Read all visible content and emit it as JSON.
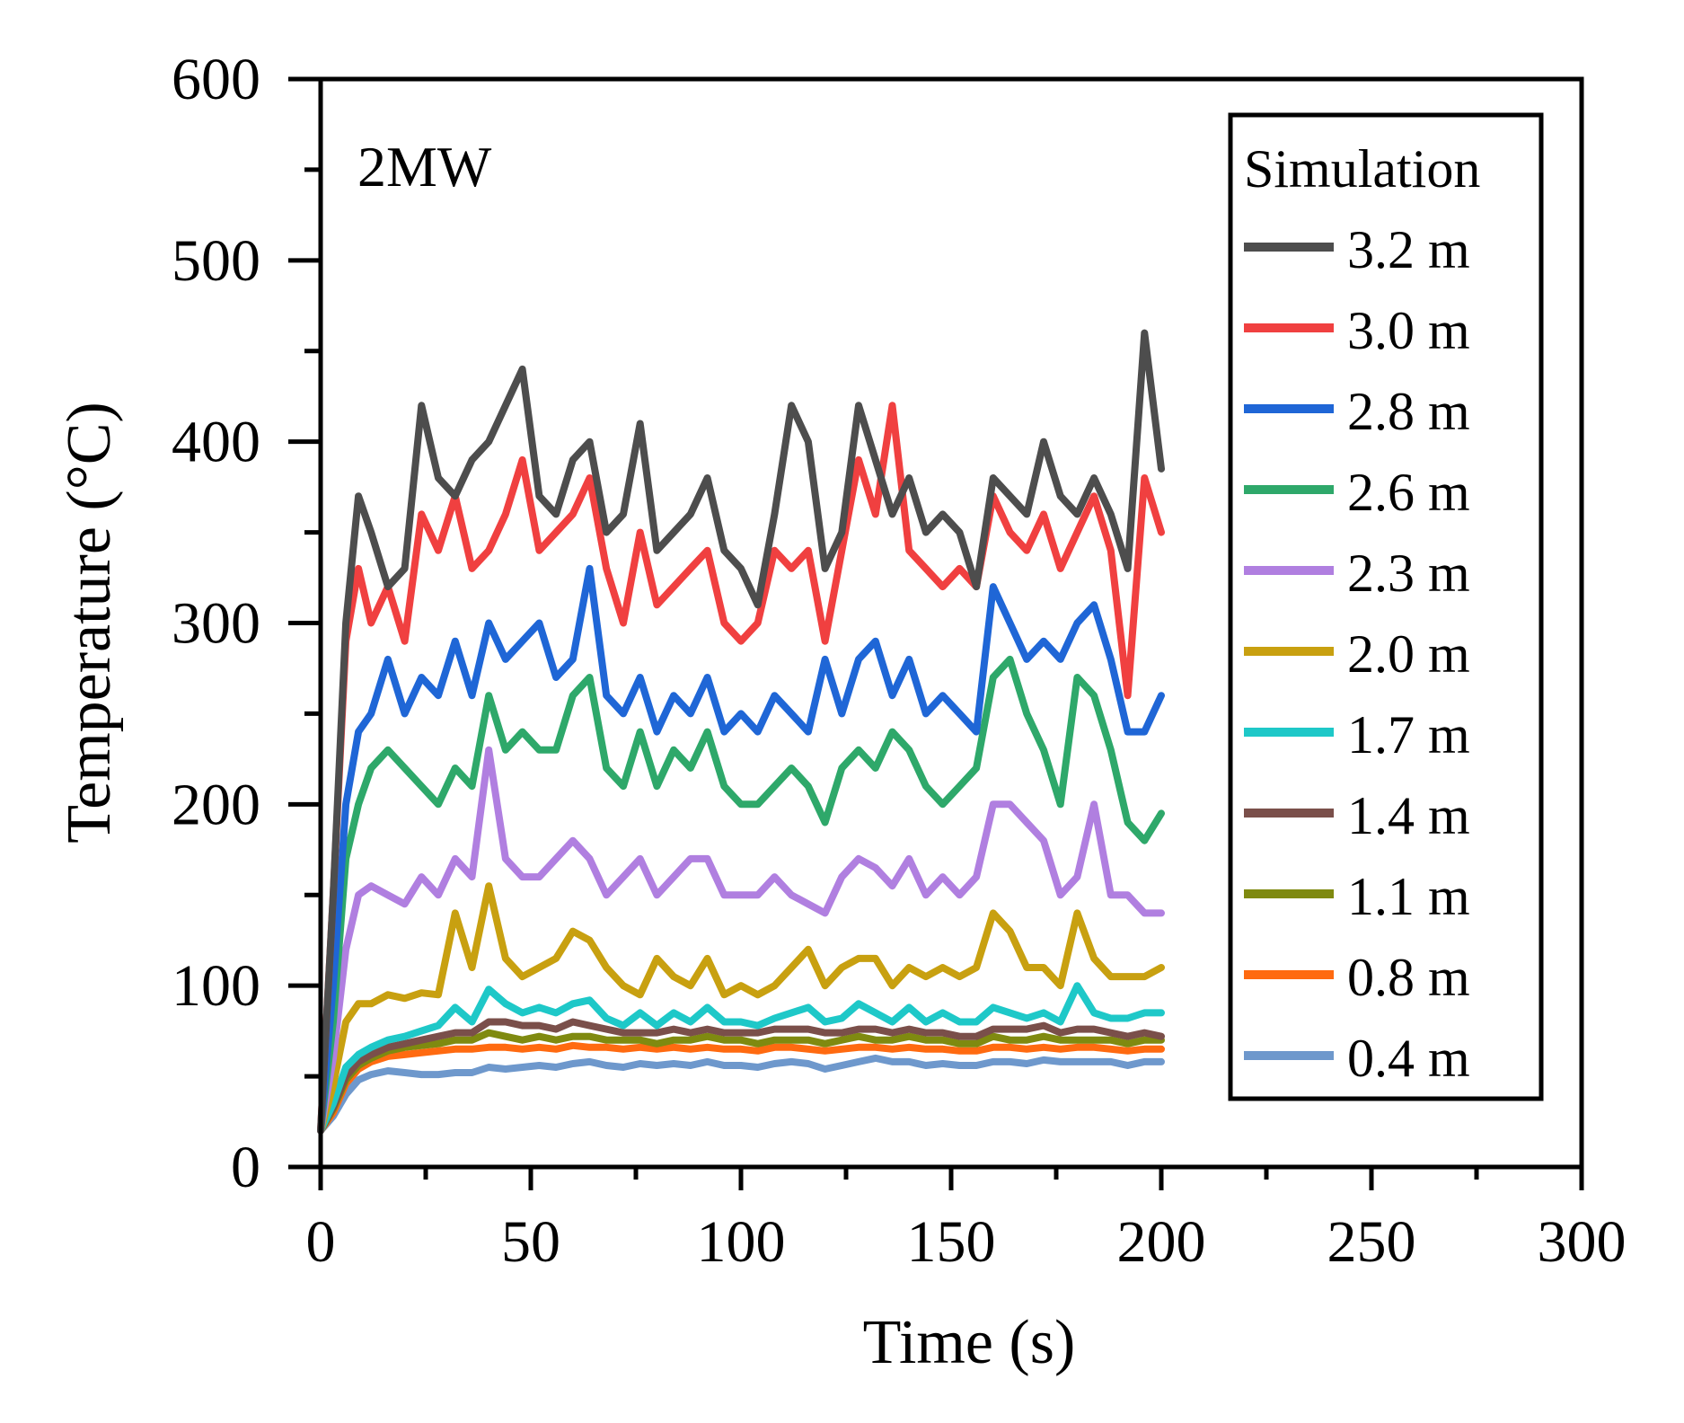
{
  "chart_data": {
    "type": "line",
    "title": "",
    "annotation": "2MW",
    "xlabel": "Time (s)",
    "ylabel": "Temperature (°C)",
    "xlim": [
      0,
      300
    ],
    "ylim": [
      0,
      600
    ],
    "xticks": [
      0,
      50,
      100,
      150,
      200,
      250,
      300
    ],
    "xtick_labels": [
      "0",
      "50",
      "100",
      "150",
      "200",
      "250",
      "300"
    ],
    "yticks": [
      0,
      100,
      200,
      300,
      400,
      500,
      600
    ],
    "ytick_labels": [
      "0",
      "100",
      "200",
      "300",
      "400",
      "500",
      "600"
    ],
    "grid": false,
    "legend_title": "Simulation",
    "legend_position": "top-right",
    "x": [
      0,
      3,
      6,
      9,
      12,
      16,
      20,
      24,
      28,
      32,
      36,
      40,
      44,
      48,
      52,
      56,
      60,
      64,
      68,
      72,
      76,
      80,
      84,
      88,
      92,
      96,
      100,
      104,
      108,
      112,
      116,
      120,
      124,
      128,
      132,
      136,
      140,
      144,
      148,
      152,
      156,
      160,
      164,
      168,
      172,
      176,
      180,
      184,
      188,
      192,
      196,
      200
    ],
    "series": [
      {
        "name": "3.2 m",
        "color": "#4d4d4d",
        "values": [
          20,
          150,
          300,
          370,
          350,
          320,
          330,
          420,
          380,
          370,
          390,
          400,
          420,
          440,
          370,
          360,
          390,
          400,
          350,
          360,
          410,
          340,
          350,
          360,
          380,
          340,
          330,
          310,
          360,
          420,
          400,
          330,
          350,
          420,
          390,
          360,
          380,
          350,
          360,
          350,
          320,
          380,
          370,
          360,
          400,
          370,
          360,
          380,
          360,
          330,
          460,
          385
        ]
      },
      {
        "name": "3.0 m",
        "color": "#f04040",
        "values": [
          20,
          150,
          290,
          330,
          300,
          320,
          290,
          360,
          340,
          370,
          330,
          340,
          360,
          390,
          340,
          350,
          360,
          380,
          330,
          300,
          350,
          310,
          320,
          330,
          340,
          300,
          290,
          300,
          340,
          330,
          340,
          290,
          340,
          390,
          360,
          420,
          340,
          330,
          320,
          330,
          320,
          370,
          350,
          340,
          360,
          330,
          350,
          370,
          340,
          260,
          380,
          350
        ]
      },
      {
        "name": "2.8 m",
        "color": "#1f66d6",
        "values": [
          20,
          100,
          200,
          240,
          250,
          280,
          250,
          270,
          260,
          290,
          260,
          300,
          280,
          290,
          300,
          270,
          280,
          330,
          260,
          250,
          270,
          240,
          260,
          250,
          270,
          240,
          250,
          240,
          260,
          250,
          240,
          280,
          250,
          280,
          290,
          260,
          280,
          250,
          260,
          250,
          240,
          320,
          300,
          280,
          290,
          280,
          300,
          310,
          280,
          240,
          240,
          260
        ]
      },
      {
        "name": "2.6 m",
        "color": "#2ea86a",
        "values": [
          20,
          80,
          170,
          200,
          220,
          230,
          220,
          210,
          200,
          220,
          210,
          260,
          230,
          240,
          230,
          230,
          260,
          270,
          220,
          210,
          240,
          210,
          230,
          220,
          240,
          210,
          200,
          200,
          210,
          220,
          210,
          190,
          220,
          230,
          220,
          240,
          230,
          210,
          200,
          210,
          220,
          270,
          280,
          250,
          230,
          200,
          270,
          260,
          230,
          190,
          180,
          195
        ]
      },
      {
        "name": "2.3 m",
        "color": "#b07fe0",
        "values": [
          20,
          60,
          120,
          150,
          155,
          150,
          145,
          160,
          150,
          170,
          160,
          230,
          170,
          160,
          160,
          170,
          180,
          170,
          150,
          160,
          170,
          150,
          160,
          170,
          170,
          150,
          150,
          150,
          160,
          150,
          145,
          140,
          160,
          170,
          165,
          155,
          170,
          150,
          160,
          150,
          160,
          200,
          200,
          190,
          180,
          150,
          160,
          200,
          150,
          150,
          140,
          140
        ]
      },
      {
        "name": "2.0 m",
        "color": "#c8a010",
        "values": [
          20,
          45,
          80,
          90,
          90,
          95,
          93,
          96,
          95,
          140,
          110,
          155,
          115,
          105,
          110,
          115,
          130,
          125,
          110,
          100,
          95,
          115,
          105,
          100,
          115,
          95,
          100,
          95,
          100,
          110,
          120,
          100,
          110,
          115,
          115,
          100,
          110,
          105,
          110,
          105,
          110,
          140,
          130,
          110,
          110,
          100,
          140,
          115,
          105,
          105,
          105,
          110
        ]
      },
      {
        "name": "1.7 m",
        "color": "#1ec8c8",
        "values": [
          20,
          35,
          55,
          62,
          66,
          70,
          72,
          75,
          78,
          88,
          80,
          98,
          90,
          85,
          88,
          85,
          90,
          92,
          82,
          78,
          85,
          78,
          85,
          80,
          88,
          80,
          80,
          78,
          82,
          85,
          88,
          80,
          82,
          90,
          85,
          80,
          88,
          80,
          85,
          80,
          80,
          88,
          85,
          82,
          85,
          80,
          100,
          85,
          82,
          82,
          85,
          85
        ]
      },
      {
        "name": "1.4 m",
        "color": "#7a4f4a",
        "values": [
          20,
          33,
          50,
          58,
          62,
          66,
          68,
          70,
          72,
          74,
          74,
          80,
          80,
          78,
          78,
          76,
          80,
          78,
          76,
          74,
          74,
          74,
          76,
          74,
          76,
          74,
          74,
          74,
          76,
          76,
          76,
          74,
          74,
          76,
          76,
          74,
          76,
          74,
          74,
          72,
          72,
          76,
          76,
          76,
          78,
          74,
          76,
          76,
          74,
          72,
          74,
          72
        ]
      },
      {
        "name": "1.1 m",
        "color": "#7f8a10",
        "values": [
          20,
          32,
          48,
          56,
          60,
          64,
          66,
          67,
          68,
          70,
          70,
          74,
          72,
          70,
          72,
          70,
          72,
          72,
          70,
          70,
          70,
          68,
          70,
          70,
          72,
          70,
          70,
          68,
          70,
          70,
          70,
          68,
          70,
          72,
          70,
          70,
          72,
          70,
          70,
          68,
          68,
          72,
          70,
          70,
          72,
          70,
          70,
          70,
          70,
          68,
          70,
          70
        ]
      },
      {
        "name": "0.8 m",
        "color": "#ff6a10",
        "values": [
          20,
          30,
          46,
          54,
          58,
          61,
          62,
          63,
          64,
          65,
          65,
          66,
          66,
          65,
          66,
          65,
          67,
          66,
          66,
          65,
          66,
          65,
          66,
          65,
          66,
          65,
          65,
          64,
          66,
          66,
          65,
          64,
          65,
          66,
          66,
          65,
          66,
          65,
          65,
          64,
          64,
          66,
          66,
          65,
          66,
          65,
          66,
          66,
          65,
          64,
          65,
          65
        ]
      },
      {
        "name": "0.4 m",
        "color": "#6e98cc",
        "values": [
          20,
          28,
          40,
          48,
          51,
          53,
          52,
          51,
          51,
          52,
          52,
          55,
          54,
          55,
          56,
          55,
          57,
          58,
          56,
          55,
          57,
          56,
          57,
          56,
          58,
          56,
          56,
          55,
          57,
          58,
          57,
          54,
          56,
          58,
          60,
          58,
          58,
          56,
          57,
          56,
          56,
          58,
          58,
          57,
          59,
          58,
          58,
          58,
          58,
          56,
          58,
          58
        ]
      }
    ]
  }
}
